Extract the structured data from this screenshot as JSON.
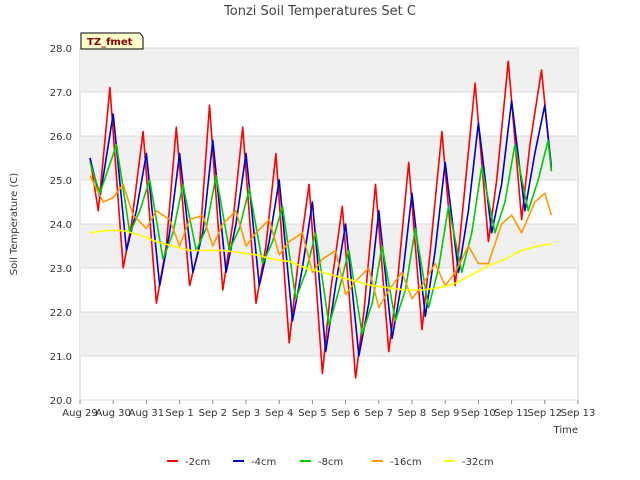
{
  "chart_data": {
    "type": "line",
    "title": "Tonzi Soil Temperatures Set C",
    "xlabel": "Time",
    "ylabel": "Soil Temperature (C)",
    "site_label": "TZ_fmet",
    "ylim": [
      20.0,
      28.0
    ],
    "xlim": [
      0,
      15
    ],
    "y_ticks": [
      "20.0",
      "21.0",
      "22.0",
      "23.0",
      "24.0",
      "25.0",
      "26.0",
      "27.0",
      "28.0"
    ],
    "x_ticks": [
      "Aug 29",
      "Aug 30",
      "Aug 31",
      "Sep 1",
      "Sep 2",
      "Sep 3",
      "Sep 4",
      "Sep 5",
      "Sep 6",
      "Sep 7",
      "Sep 8",
      "Sep 9",
      "Sep 10",
      "Sep 11",
      "Sep 12",
      "Sep 13"
    ],
    "grid": true,
    "legend_position": "bottom",
    "x_unit": "days since Aug 29 00:00",
    "series": [
      {
        "name": "-2cm",
        "color": "#ff0000",
        "x": [
          0.3,
          0.55,
          0.9,
          1.3,
          1.55,
          1.9,
          2.3,
          2.6,
          2.9,
          3.3,
          3.6,
          3.9,
          4.3,
          4.6,
          4.9,
          5.3,
          5.6,
          5.9,
          6.3,
          6.55,
          6.9,
          7.3,
          7.55,
          7.9,
          8.3,
          8.55,
          8.9,
          9.3,
          9.55,
          9.9,
          10.3,
          10.55,
          10.9,
          11.3,
          11.55,
          11.9,
          12.3,
          12.55,
          12.9,
          13.3,
          13.55,
          13.9,
          14.2
        ],
        "y": [
          25.5,
          24.3,
          27.1,
          23.0,
          24.0,
          26.1,
          22.2,
          23.5,
          26.2,
          22.6,
          23.5,
          26.7,
          22.5,
          24.0,
          26.2,
          22.2,
          23.5,
          25.6,
          21.3,
          23.0,
          24.9,
          20.6,
          22.5,
          24.4,
          20.5,
          22.0,
          24.9,
          21.1,
          22.6,
          25.4,
          21.6,
          23.4,
          26.1,
          22.6,
          24.5,
          27.2,
          23.6,
          25.0,
          27.7,
          24.1,
          25.8,
          27.5,
          25.2
        ]
      },
      {
        "name": "-4cm",
        "color": "#0000cc",
        "x": [
          0.3,
          0.6,
          1.0,
          1.4,
          1.7,
          2.0,
          2.4,
          2.7,
          3.0,
          3.4,
          3.7,
          4.0,
          4.4,
          4.7,
          5.0,
          5.4,
          5.7,
          6.0,
          6.4,
          6.7,
          7.0,
          7.4,
          7.7,
          8.0,
          8.4,
          8.7,
          9.0,
          9.4,
          9.7,
          10.0,
          10.4,
          10.7,
          11.0,
          11.4,
          11.7,
          12.0,
          12.4,
          12.7,
          13.0,
          13.4,
          13.7,
          14.0,
          14.2
        ],
        "y": [
          25.5,
          24.6,
          26.5,
          23.4,
          24.3,
          25.6,
          22.6,
          23.8,
          25.6,
          22.9,
          23.8,
          25.9,
          22.9,
          24.0,
          25.6,
          22.6,
          23.6,
          25.0,
          21.8,
          23.0,
          24.5,
          21.1,
          22.6,
          24.0,
          21.0,
          22.2,
          24.3,
          21.4,
          22.7,
          24.7,
          21.9,
          23.4,
          25.4,
          22.9,
          24.3,
          26.3,
          23.8,
          24.9,
          26.8,
          24.3,
          25.6,
          26.7,
          25.3
        ]
      },
      {
        "name": "-8cm",
        "color": "#00cc00",
        "x": [
          0.3,
          0.6,
          1.1,
          1.5,
          1.8,
          2.1,
          2.5,
          2.8,
          3.1,
          3.5,
          3.8,
          4.1,
          4.5,
          4.8,
          5.1,
          5.5,
          5.8,
          6.1,
          6.5,
          6.8,
          7.1,
          7.5,
          7.8,
          8.1,
          8.5,
          8.8,
          9.1,
          9.5,
          9.8,
          10.1,
          10.5,
          10.8,
          11.1,
          11.5,
          11.8,
          12.1,
          12.5,
          12.8,
          13.1,
          13.5,
          13.8,
          14.1,
          14.2
        ],
        "y": [
          25.4,
          24.7,
          25.8,
          23.8,
          24.3,
          25.0,
          23.2,
          23.8,
          24.9,
          23.4,
          23.9,
          25.1,
          23.4,
          23.9,
          24.8,
          23.1,
          23.6,
          24.4,
          22.3,
          22.9,
          23.8,
          21.7,
          22.5,
          23.4,
          21.5,
          22.2,
          23.5,
          21.8,
          22.5,
          23.9,
          22.1,
          23.0,
          24.4,
          22.9,
          23.8,
          25.3,
          23.8,
          24.5,
          25.8,
          24.3,
          25.0,
          25.9,
          25.2
        ]
      },
      {
        "name": "-16cm",
        "color": "#ff9900",
        "x": [
          0.3,
          0.7,
          1.0,
          1.3,
          1.6,
          2.0,
          2.3,
          2.7,
          3.0,
          3.3,
          3.7,
          4.0,
          4.3,
          4.7,
          5.0,
          5.3,
          5.7,
          6.0,
          6.3,
          6.7,
          7.0,
          7.3,
          7.7,
          8.0,
          8.3,
          8.7,
          9.0,
          9.3,
          9.7,
          10.0,
          10.3,
          10.7,
          11.0,
          11.3,
          11.7,
          12.0,
          12.3,
          12.7,
          13.0,
          13.3,
          13.7,
          14.0,
          14.2
        ],
        "y": [
          25.1,
          24.5,
          24.6,
          24.9,
          24.2,
          23.9,
          24.3,
          24.1,
          23.5,
          24.1,
          24.2,
          23.5,
          24.0,
          24.3,
          23.5,
          23.8,
          24.1,
          23.3,
          23.6,
          23.8,
          22.9,
          23.2,
          23.4,
          22.4,
          22.7,
          23.0,
          22.1,
          22.5,
          22.9,
          22.3,
          22.6,
          23.1,
          22.6,
          22.9,
          23.5,
          23.1,
          23.1,
          24.0,
          24.2,
          23.8,
          24.5,
          24.7,
          24.2
        ]
      },
      {
        "name": "-32cm",
        "color": "#ffff00",
        "x": [
          0.3,
          0.8,
          1.3,
          1.8,
          2.3,
          2.8,
          3.3,
          3.8,
          4.3,
          4.8,
          5.3,
          5.8,
          6.3,
          6.8,
          7.3,
          7.8,
          8.3,
          8.8,
          9.3,
          9.8,
          10.3,
          10.8,
          11.3,
          11.8,
          12.3,
          12.8,
          13.3,
          13.8,
          14.2
        ],
        "y": [
          23.8,
          23.85,
          23.85,
          23.75,
          23.6,
          23.5,
          23.4,
          23.4,
          23.4,
          23.35,
          23.3,
          23.2,
          23.15,
          23.0,
          22.9,
          22.8,
          22.7,
          22.6,
          22.55,
          22.5,
          22.5,
          22.55,
          22.65,
          22.85,
          23.05,
          23.2,
          23.4,
          23.5,
          23.55
        ]
      }
    ]
  }
}
